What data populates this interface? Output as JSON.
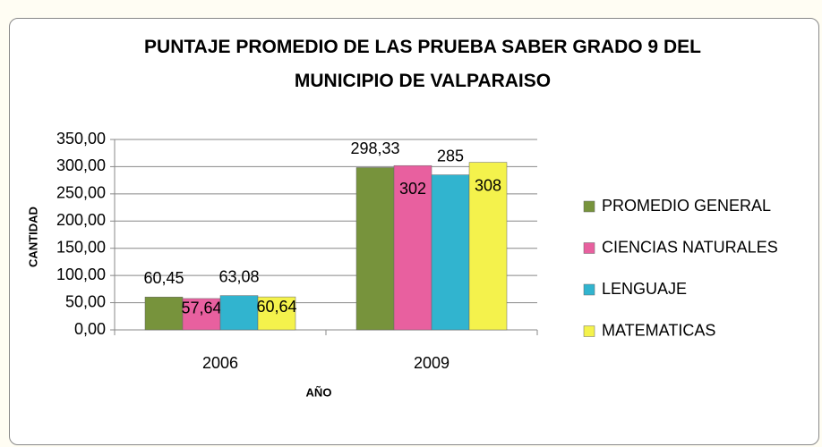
{
  "chart_data": {
    "type": "bar",
    "title": "PUNTAJE PROMEDIO DE LAS PRUEBA SABER GRADO  9 DEL MUNICIPIO DE VALPARAISO",
    "y_label": "CANTIDAD",
    "x_label": "AÑO",
    "categories": [
      "2006",
      "2009"
    ],
    "series": [
      {
        "name": "PROMEDIO GENERAL",
        "color": "#77933c",
        "values": [
          60.45,
          298.33
        ],
        "value_labels": [
          "60,45",
          "298,33"
        ]
      },
      {
        "name": "CIENCIAS NATURALES",
        "color": "#e8609f",
        "values": [
          57.64,
          302
        ],
        "value_labels": [
          "57,64",
          "302"
        ]
      },
      {
        "name": "LENGUAJE",
        "color": "#31b4cf",
        "values": [
          63.08,
          285
        ],
        "value_labels": [
          "63,08",
          "285"
        ]
      },
      {
        "name": "MATEMATICAS",
        "color": "#f4f24c",
        "values": [
          60.64,
          308
        ],
        "value_labels": [
          "60,64",
          "308"
        ]
      }
    ],
    "ylim": [
      0,
      350
    ],
    "yticks": [
      {
        "value": 0,
        "label": "0,00"
      },
      {
        "value": 50,
        "label": "50,00"
      },
      {
        "value": 100,
        "label": "100,00"
      },
      {
        "value": 150,
        "label": "150,00"
      },
      {
        "value": 200,
        "label": "200,00"
      },
      {
        "value": 250,
        "label": "250,00"
      },
      {
        "value": 300,
        "label": "300,00"
      },
      {
        "value": 350,
        "label": "350,00"
      }
    ],
    "grid": true,
    "legend": "right"
  }
}
